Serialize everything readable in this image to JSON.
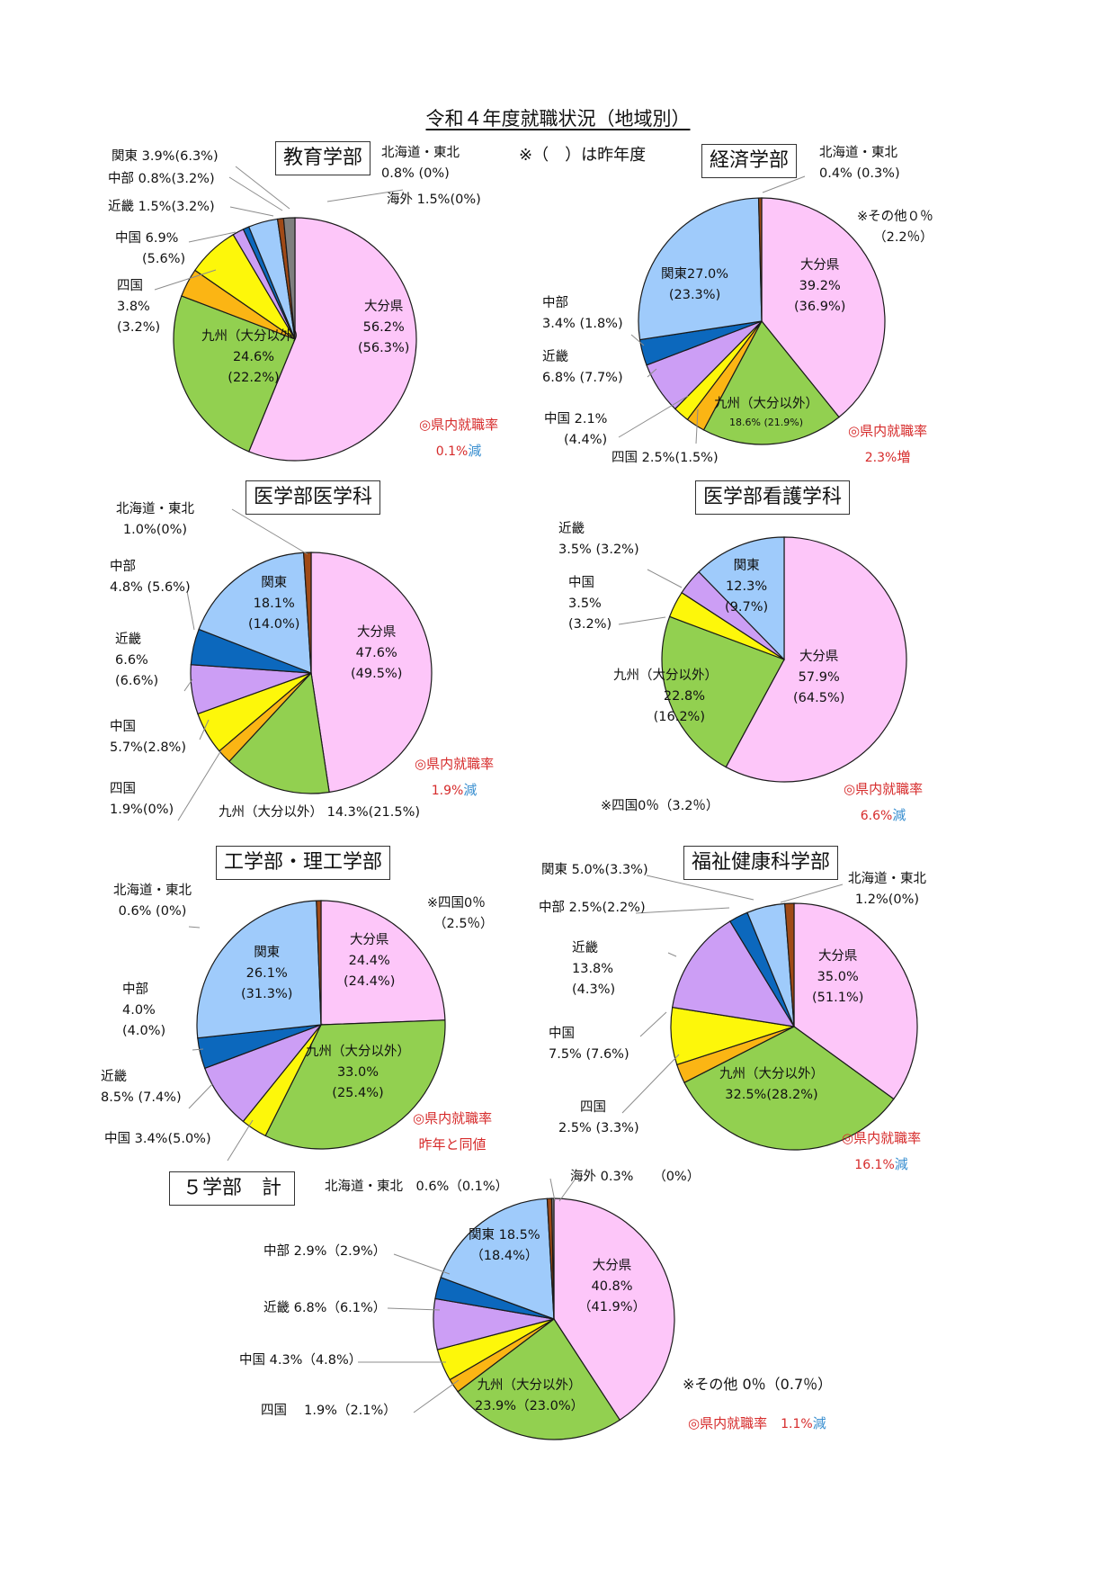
{
  "title": "令和４年度就職状況（地域別）",
  "note": "※（　）は昨年度",
  "colors": {
    "hokkaido": "#a04a17",
    "kanto": "#9fcbfb",
    "chubu": "#0c68bd",
    "kinki": "#cc9ef5",
    "chugoku": "#fdf70a",
    "shikoku": "#fbb514",
    "kyushu": "#92d050",
    "oita": "#fdc6f9",
    "kaigai": "#7f7f7f"
  },
  "chart_data": [
    {
      "type": "pie",
      "title": "教育学部",
      "categories": [
        "大分県",
        "九州（大分以外）",
        "四国",
        "中国",
        "近畿",
        "中部",
        "関東",
        "北海道・東北",
        "海外"
      ],
      "values": [
        56.2,
        24.6,
        3.8,
        6.9,
        1.5,
        0.8,
        3.9,
        0.8,
        1.5
      ],
      "previous": [
        56.3,
        22.2,
        3.2,
        5.6,
        3.2,
        3.2,
        6.3,
        0,
        0
      ],
      "start_angle_deg": 90,
      "rate_label": "◎県内就職率",
      "rate_value": "0.1%",
      "rate_change": "減",
      "labels": {
        "oita": [
          "大分県",
          "56.2%",
          "(56.3%)"
        ],
        "kyushu": [
          "九州（大分以外）",
          "24.6%",
          "(22.2%)"
        ],
        "shikoku": [
          "四国",
          "3.8%",
          "(3.2%)"
        ],
        "chugoku": [
          "中国 6.9%",
          "(5.6%)"
        ],
        "kinki": [
          "近畿 1.5%(3.2%)"
        ],
        "chubu": [
          "中部 0.8%(3.2%)"
        ],
        "kanto": [
          "関東 3.9%(6.3%)"
        ],
        "hokkaido": [
          "北海道・東北",
          "0.8% (0%)"
        ],
        "kaigai": [
          "海外 1.5%(0%)"
        ]
      }
    },
    {
      "type": "pie",
      "title": "経済学部",
      "categories": [
        "大分県",
        "九州（大分以外）",
        "四国",
        "中国",
        "近畿",
        "中部",
        "関東",
        "北海道・東北"
      ],
      "values": [
        39.2,
        18.6,
        2.5,
        2.1,
        6.8,
        3.4,
        27.0,
        0.4
      ],
      "previous": [
        36.9,
        21.9,
        1.5,
        4.4,
        7.7,
        1.8,
        23.3,
        0.3
      ],
      "start_angle_deg": 90,
      "other_note": [
        "※その他０％",
        "（2.2％）"
      ],
      "rate_label": "◎県内就職率",
      "rate_value": "2.3%",
      "rate_change": "増",
      "labels": {
        "oita": [
          "大分県",
          "39.2%",
          "(36.9%)"
        ],
        "kyushu": [
          "九州（大分以外）",
          "18.6% (21.9%)"
        ],
        "shikoku": [
          "四国 2.5%(1.5%)"
        ],
        "chugoku": [
          "中国 2.1%",
          "(4.4%)"
        ],
        "kinki": [
          "近畿",
          "6.8% (7.7%)"
        ],
        "chubu": [
          "中部",
          "3.4% (1.8%)"
        ],
        "kanto": [
          "関東27.0%",
          "(23.3%)"
        ],
        "hokkaido": [
          "北海道・東北",
          "0.4% (0.3%)"
        ]
      }
    },
    {
      "type": "pie",
      "title": "医学部医学科",
      "categories": [
        "大分県",
        "九州（大分以外）",
        "四国",
        "中国",
        "近畿",
        "中部",
        "関東",
        "北海道・東北"
      ],
      "values": [
        47.6,
        14.3,
        1.9,
        5.7,
        6.6,
        4.8,
        18.1,
        1.0
      ],
      "previous": [
        49.5,
        21.5,
        0,
        2.8,
        6.6,
        5.6,
        14.0,
        0
      ],
      "start_angle_deg": 90,
      "rate_label": "◎県内就職率",
      "rate_value": "1.9%",
      "rate_change": "減",
      "labels": {
        "oita": [
          "大分県",
          "47.6%",
          "(49.5%)"
        ],
        "kyushu": [
          "九州（大分以外）  14.3%(21.5%)"
        ],
        "shikoku": [
          "四国",
          "1.9%(0%)"
        ],
        "chugoku": [
          "中国",
          "5.7%(2.8%)"
        ],
        "kinki": [
          "近畿",
          "6.6%",
          "(6.6%)"
        ],
        "chubu": [
          "中部",
          "4.8% (5.6%)"
        ],
        "kanto": [
          "関東",
          "18.1%",
          "(14.0%)"
        ],
        "hokkaido": [
          "北海道・東北",
          "1.0%(0%)"
        ]
      }
    },
    {
      "type": "pie",
      "title": "医学部看護学科",
      "categories": [
        "大分県",
        "九州（大分以外）",
        "中国",
        "近畿",
        "関東"
      ],
      "values": [
        57.9,
        22.8,
        3.5,
        3.5,
        12.3
      ],
      "previous": [
        64.5,
        16.2,
        3.2,
        3.2,
        9.7
      ],
      "start_angle_deg": 90,
      "other_note": [
        "※四国0％（3.2％）"
      ],
      "rate_label": "◎県内就職率",
      "rate_value": "6.6%",
      "rate_change": "減",
      "labels": {
        "oita": [
          "大分県",
          "57.9%",
          "(64.5%)"
        ],
        "kyushu": [
          "九州（大分以外）",
          "22.8%",
          "(16.2%)"
        ],
        "chugoku": [
          "中国",
          "3.5%",
          "(3.2%)"
        ],
        "kinki": [
          "近畿",
          "3.5% (3.2%)"
        ],
        "kanto": [
          "関東",
          "12.3%",
          "(9.7%)"
        ]
      }
    },
    {
      "type": "pie",
      "title": "工学部・理工学部",
      "categories": [
        "大分県",
        "九州（大分以外）",
        "中国",
        "近畿",
        "中部",
        "関東",
        "北海道・東北"
      ],
      "values": [
        24.4,
        33.0,
        3.4,
        8.5,
        4.0,
        26.1,
        0.6
      ],
      "previous": [
        24.4,
        25.4,
        5.0,
        7.4,
        4.0,
        31.3,
        0
      ],
      "start_angle_deg": 90,
      "other_note": [
        "※四国0％",
        "（2.5％）"
      ],
      "rate_label": "◎県内就職率",
      "rate_value": "昨年と同値",
      "rate_change": "",
      "labels": {
        "oita": [
          "大分県",
          "24.4%",
          "(24.4%)"
        ],
        "kyushu": [
          "九州（大分以外）",
          "33.0%",
          "(25.4%)"
        ],
        "chugoku": [
          "中国 3.4%(5.0%)"
        ],
        "kinki": [
          "近畿",
          "8.5% (7.4%)"
        ],
        "chubu": [
          "中部",
          "4.0%",
          "(4.0%)"
        ],
        "kanto": [
          "関東",
          "26.1%",
          "(31.3%)"
        ],
        "hokkaido": [
          "北海道・東北",
          "0.6% (0%)"
        ]
      }
    },
    {
      "type": "pie",
      "title": "福祉健康科学部",
      "categories": [
        "大分県",
        "九州（大分以外）",
        "四国",
        "中国",
        "近畿",
        "中部",
        "関東",
        "北海道・東北"
      ],
      "values": [
        35.0,
        32.5,
        2.5,
        7.5,
        13.8,
        2.5,
        5.0,
        1.2
      ],
      "previous": [
        51.1,
        28.2,
        3.3,
        7.6,
        4.3,
        2.2,
        3.3,
        0
      ],
      "start_angle_deg": 90,
      "rate_label": "◎県内就職率",
      "rate_value": "16.1%",
      "rate_change": "減",
      "labels": {
        "oita": [
          "大分県",
          "35.0%",
          "(51.1%)"
        ],
        "kyushu": [
          "九州（大分以外）",
          "32.5%(28.2%)"
        ],
        "shikoku": [
          "四国",
          "2.5% (3.3%)"
        ],
        "chugoku": [
          "中国",
          "7.5% (7.6%)"
        ],
        "kinki": [
          "近畿",
          "13.8%",
          "(4.3%)"
        ],
        "chubu": [
          "中部 2.5%(2.2%)"
        ],
        "kanto": [
          "関東 5.0%(3.3%)"
        ],
        "hokkaido": [
          "北海道・東北",
          "1.2%(0%)"
        ]
      }
    },
    {
      "type": "pie",
      "title": "５学部　計",
      "categories": [
        "大分県",
        "九州（大分以外）",
        "四国",
        "中国",
        "近畿",
        "中部",
        "関東",
        "北海道・東北",
        "海外"
      ],
      "values": [
        40.8,
        23.9,
        1.9,
        4.3,
        6.8,
        2.9,
        18.5,
        0.6,
        0.3
      ],
      "previous": [
        41.9,
        23.0,
        2.1,
        4.8,
        6.1,
        2.9,
        18.4,
        0.1,
        0
      ],
      "start_angle_deg": 90,
      "other_note": [
        "※その他 0％（0.7％）"
      ],
      "rate_label": "◎県内就職率",
      "rate_value": "1.1%",
      "rate_change": "減",
      "labels": {
        "oita": [
          "大分県",
          "40.8%",
          "（41.9%）"
        ],
        "kyushu": [
          "九州（大分以外）",
          "23.9%（23.0%）"
        ],
        "shikoku": [
          "四国　 1.9%（2.1%）"
        ],
        "chugoku": [
          "中国 4.3%（4.8%）"
        ],
        "kinki": [
          "近畿 6.8%（6.1%）"
        ],
        "chubu": [
          "中部 2.9%（2.9%）"
        ],
        "kanto": [
          "関東 18.5%",
          "（18.4%）"
        ],
        "hokkaido": [
          "北海道・東北　0.6%（0.1%）"
        ],
        "kaigai": [
          "海外 0.3%　　（0%）"
        ]
      }
    }
  ]
}
